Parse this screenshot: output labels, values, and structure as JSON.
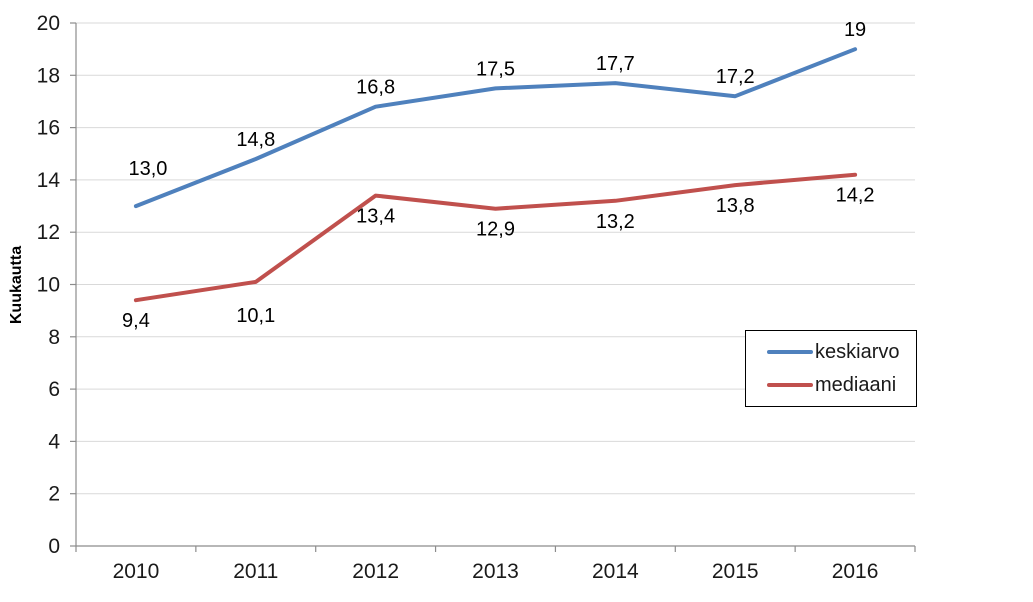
{
  "chart_data": {
    "type": "line",
    "title": "",
    "xlabel": "",
    "ylabel": "Kuukautta",
    "categories": [
      "2010",
      "2011",
      "2012",
      "2013",
      "2014",
      "2015",
      "2016"
    ],
    "series": [
      {
        "name": "keskiarvo",
        "color": "#4F81BD",
        "values": [
          13.0,
          14.8,
          16.8,
          17.5,
          17.7,
          17.2,
          19
        ],
        "data_labels": [
          "13,0",
          "14,8",
          "16,8",
          "17,5",
          "17,7",
          "17,2",
          "19"
        ],
        "label_position": "above"
      },
      {
        "name": "mediaani",
        "color": "#C0504D",
        "values": [
          9.4,
          10.1,
          13.4,
          12.9,
          13.2,
          13.8,
          14.2
        ],
        "data_labels": [
          "9,4",
          "10,1",
          "13,4",
          "12,9",
          "13,2",
          "13,8",
          "14,2"
        ],
        "label_position": "below"
      }
    ],
    "ylim": [
      0,
      20
    ],
    "ytick_step": 2,
    "y_tick_labels": [
      "0",
      "2",
      "4",
      "6",
      "8",
      "10",
      "12",
      "14",
      "16",
      "18",
      "20"
    ],
    "grid": true,
    "legend_position": "middle-right",
    "grid_color": "#D9D9D9",
    "axis_color": "#8C8C8C",
    "text_color": "#1A1A1A"
  }
}
